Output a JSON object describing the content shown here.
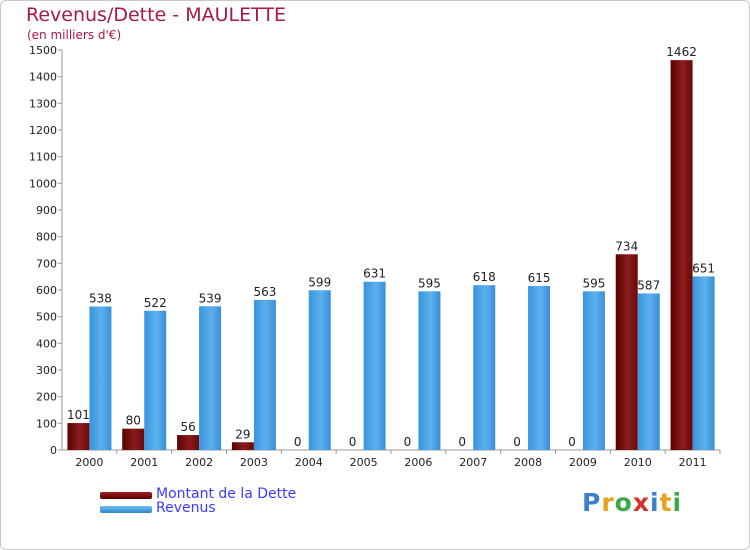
{
  "header": {
    "title": "Revenus/Dette - MAULETTE",
    "subtitle": "(en milliers d'€)"
  },
  "chart_data": {
    "type": "bar",
    "title": "Revenus/Dette - MAULETTE",
    "subtitle": "(en milliers d'€)",
    "categories": [
      "2000",
      "2001",
      "2002",
      "2003",
      "2004",
      "2005",
      "2006",
      "2007",
      "2008",
      "2009",
      "2010",
      "2011"
    ],
    "series": [
      {
        "name": "Montant de la Dette",
        "color": "#7a1010",
        "values": [
          101,
          80,
          56,
          29,
          0,
          0,
          0,
          0,
          0,
          0,
          734,
          1462
        ]
      },
      {
        "name": "Revenus",
        "color": "#4aa3e6",
        "values": [
          538,
          522,
          539,
          563,
          599,
          631,
          595,
          618,
          615,
          595,
          587,
          651
        ]
      }
    ],
    "ylim": [
      0,
      1500
    ],
    "yticks": [
      0,
      100,
      200,
      300,
      400,
      500,
      600,
      700,
      800,
      900,
      1000,
      1100,
      1200,
      1300,
      1400,
      1500
    ],
    "grid": false,
    "legend_position": "bottom-left"
  },
  "legend": [
    {
      "label": "Montant de la Dette",
      "color": "#7a1010"
    },
    {
      "label": "Revenus",
      "color": "#4aa3e6"
    }
  ],
  "logo": {
    "text": "Proxiti",
    "colors": [
      "#3a7fd0",
      "#e8a21c",
      "#3aa844",
      "#d8302c",
      "#3a7fd0",
      "#e8a21c",
      "#3aa844"
    ]
  }
}
